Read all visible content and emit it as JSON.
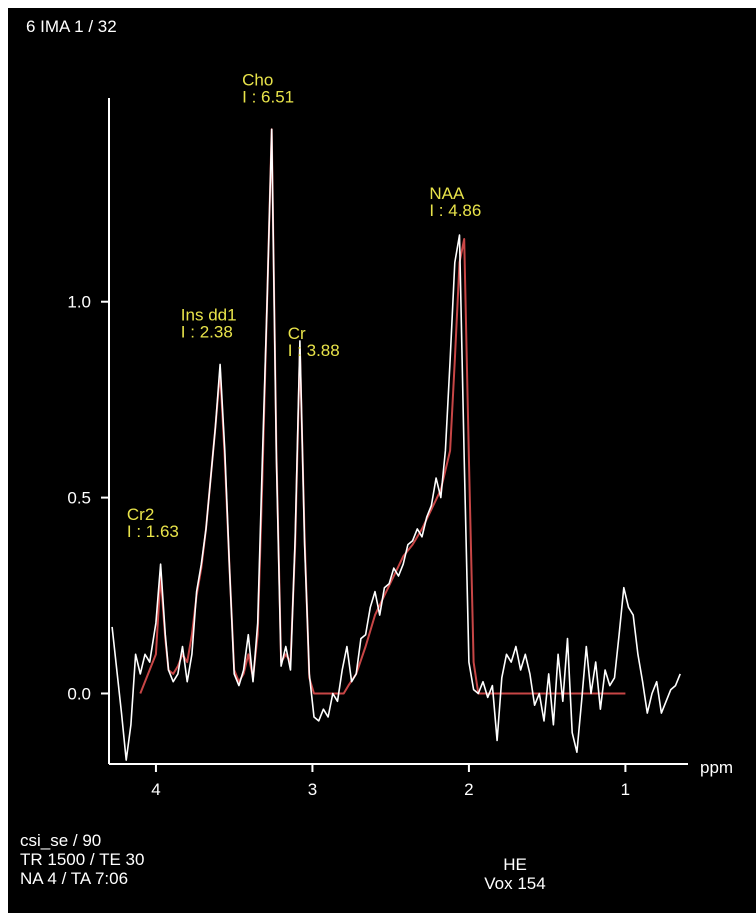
{
  "header": {
    "title": "6 IMA 1 / 32"
  },
  "footer": {
    "sequence": "csi_se / 90",
    "tr_te": "TR 1500 / TE 30",
    "na_ta": "NA 4 / TA 7:06",
    "code": "HE",
    "voxel": "Vox 154"
  },
  "colors": {
    "background": "#000000",
    "spectrum": "#ffffff",
    "fit": "#c84646",
    "annotation": "#e8e34a"
  },
  "chart_data": {
    "type": "line",
    "xlabel": "ppm",
    "ylabel": "",
    "title": "",
    "xlim": [
      4.3,
      0.6
    ],
    "ylim": [
      -0.18,
      1.52
    ],
    "x_reversed": true,
    "xticks": [
      4,
      3,
      2,
      1
    ],
    "yticks": [
      0.0,
      0.5,
      1.0
    ],
    "ytick_labels": [
      "0.0",
      "0.5",
      "1.0"
    ],
    "grid": false,
    "annotations": [
      {
        "name": "Cho",
        "value": "I : 6.51",
        "ppm": 3.2
      },
      {
        "name": "Cr",
        "value": "I : 3.88",
        "ppm": 3.03
      },
      {
        "name": "NAA",
        "value": "I : 4.86",
        "ppm": 2.01
      },
      {
        "name": "Ins dd1",
        "value": "I : 2.38",
        "ppm": 3.56
      },
      {
        "name": "Cr2",
        "value": "I : 1.63",
        "ppm": 3.93
      }
    ],
    "series": [
      {
        "role": "spectrum",
        "x": [
          4.28,
          4.25,
          4.22,
          4.19,
          4.16,
          4.13,
          4.1,
          4.07,
          4.04,
          4.0,
          3.97,
          3.94,
          3.92,
          3.89,
          3.86,
          3.83,
          3.8,
          3.77,
          3.74,
          3.71,
          3.68,
          3.65,
          3.62,
          3.59,
          3.56,
          3.53,
          3.5,
          3.47,
          3.44,
          3.41,
          3.38,
          3.35,
          3.32,
          3.29,
          3.26,
          3.23,
          3.2,
          3.17,
          3.14,
          3.11,
          3.08,
          3.05,
          3.02,
          2.99,
          2.96,
          2.93,
          2.9,
          2.87,
          2.84,
          2.81,
          2.78,
          2.75,
          2.72,
          2.69,
          2.66,
          2.63,
          2.6,
          2.57,
          2.54,
          2.51,
          2.48,
          2.45,
          2.42,
          2.39,
          2.36,
          2.33,
          2.3,
          2.27,
          2.24,
          2.21,
          2.18,
          2.15,
          2.12,
          2.09,
          2.06,
          2.03,
          2.0,
          1.97,
          1.94,
          1.91,
          1.88,
          1.85,
          1.82,
          1.79,
          1.76,
          1.73,
          1.7,
          1.67,
          1.64,
          1.61,
          1.58,
          1.55,
          1.52,
          1.49,
          1.46,
          1.43,
          1.4,
          1.37,
          1.34,
          1.31,
          1.28,
          1.25,
          1.22,
          1.19,
          1.16,
          1.13,
          1.1,
          1.07,
          1.04,
          1.01,
          0.98,
          0.95,
          0.92,
          0.89,
          0.86,
          0.83,
          0.8,
          0.77,
          0.74,
          0.71,
          0.68,
          0.65
        ],
        "y": [
          0.17,
          0.06,
          -0.05,
          -0.17,
          -0.08,
          0.1,
          0.05,
          0.1,
          0.08,
          0.18,
          0.33,
          0.15,
          0.06,
          0.03,
          0.05,
          0.12,
          0.03,
          0.1,
          0.26,
          0.33,
          0.42,
          0.55,
          0.68,
          0.84,
          0.62,
          0.32,
          0.05,
          0.02,
          0.06,
          0.15,
          0.03,
          0.18,
          0.6,
          1.0,
          1.44,
          0.6,
          0.07,
          0.12,
          0.06,
          0.4,
          0.9,
          0.38,
          0.05,
          -0.06,
          -0.07,
          -0.04,
          -0.06,
          0.0,
          -0.02,
          0.06,
          0.12,
          0.03,
          0.05,
          0.14,
          0.15,
          0.22,
          0.26,
          0.2,
          0.27,
          0.28,
          0.32,
          0.3,
          0.33,
          0.38,
          0.39,
          0.42,
          0.4,
          0.45,
          0.48,
          0.55,
          0.5,
          0.62,
          0.85,
          1.1,
          1.17,
          0.6,
          0.08,
          0.01,
          0.0,
          0.03,
          -0.01,
          0.02,
          -0.12,
          0.04,
          0.1,
          0.08,
          0.12,
          0.06,
          0.1,
          0.05,
          -0.03,
          0.0,
          -0.07,
          0.05,
          -0.08,
          0.1,
          -0.02,
          0.14,
          -0.1,
          -0.15,
          -0.02,
          0.12,
          0.0,
          0.08,
          -0.04,
          0.06,
          0.02,
          0.04,
          0.15,
          0.27,
          0.22,
          0.2,
          0.1,
          0.03,
          -0.05,
          0.0,
          0.03,
          -0.05,
          -0.02,
          0.01,
          0.02,
          0.05
        ]
      },
      {
        "role": "fit",
        "x": [
          4.1,
          4.0,
          3.97,
          3.94,
          3.92,
          3.89,
          3.86,
          3.83,
          3.8,
          3.77,
          3.74,
          3.71,
          3.68,
          3.65,
          3.62,
          3.59,
          3.56,
          3.53,
          3.5,
          3.47,
          3.44,
          3.41,
          3.38,
          3.35,
          3.32,
          3.29,
          3.26,
          3.23,
          3.2,
          3.17,
          3.14,
          3.11,
          3.08,
          3.05,
          3.02,
          2.99,
          2.96,
          2.9,
          2.8,
          2.77,
          2.72,
          2.66,
          2.6,
          2.54,
          2.48,
          2.42,
          2.36,
          2.3,
          2.24,
          2.18,
          2.12,
          2.09,
          2.06,
          2.03,
          2.0,
          1.97,
          1.94,
          1.9,
          1.5,
          1.0
        ],
        "y": [
          0.0,
          0.1,
          0.3,
          0.14,
          0.06,
          0.05,
          0.07,
          0.1,
          0.08,
          0.15,
          0.25,
          0.32,
          0.42,
          0.55,
          0.68,
          0.82,
          0.6,
          0.32,
          0.06,
          0.03,
          0.05,
          0.1,
          0.04,
          0.15,
          0.55,
          1.0,
          1.44,
          0.62,
          0.08,
          0.1,
          0.08,
          0.38,
          0.88,
          0.4,
          0.04,
          0.0,
          0.0,
          0.0,
          0.0,
          0.02,
          0.05,
          0.12,
          0.2,
          0.25,
          0.3,
          0.35,
          0.38,
          0.42,
          0.47,
          0.52,
          0.62,
          0.85,
          1.1,
          1.16,
          0.6,
          0.08,
          0.0,
          0.0,
          0.0,
          0.0
        ]
      }
    ]
  }
}
